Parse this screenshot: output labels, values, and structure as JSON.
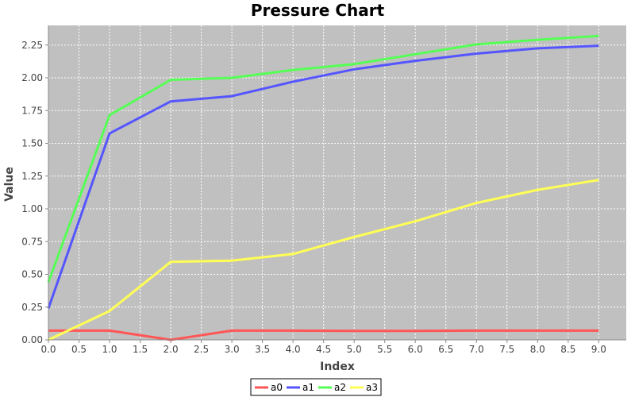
{
  "chart_data": {
    "type": "line",
    "title": "Pressure Chart",
    "xlabel": "Index",
    "ylabel": "Value",
    "xlim": [
      0,
      9.45
    ],
    "ylim": [
      0,
      2.4
    ],
    "x_ticks": [
      "0.0",
      "0.5",
      "1.0",
      "1.5",
      "2.0",
      "2.5",
      "3.0",
      "3.5",
      "4.0",
      "4.5",
      "5.0",
      "5.5",
      "6.0",
      "6.5",
      "7.0",
      "7.5",
      "8.0",
      "8.5",
      "9.0"
    ],
    "y_ticks": [
      "0.00",
      "0.25",
      "0.50",
      "0.75",
      "1.00",
      "1.25",
      "1.50",
      "1.75",
      "2.00",
      "2.25"
    ],
    "grid": true,
    "legend_position": "bottom-center",
    "plot_background": "#c0c0c0",
    "x": [
      0,
      1,
      2,
      3,
      4,
      5,
      6,
      7,
      8,
      9
    ],
    "series": [
      {
        "name": "a0",
        "color": "#ff5555",
        "values": [
          0.07,
          0.07,
          0.0,
          0.07,
          0.07,
          0.068,
          0.068,
          0.07,
          0.07,
          0.07
        ]
      },
      {
        "name": "a1",
        "color": "#5555ff",
        "values": [
          0.24,
          1.575,
          1.82,
          1.86,
          1.97,
          2.065,
          2.13,
          2.185,
          2.225,
          2.245
        ]
      },
      {
        "name": "a2",
        "color": "#55ff55",
        "values": [
          0.44,
          1.715,
          1.985,
          2.0,
          2.06,
          2.105,
          2.18,
          2.255,
          2.29,
          2.32
        ]
      },
      {
        "name": "a3",
        "color": "#ffff55",
        "values": [
          0.0,
          0.22,
          0.595,
          0.605,
          0.655,
          0.785,
          0.905,
          1.045,
          1.145,
          1.22
        ]
      }
    ]
  }
}
